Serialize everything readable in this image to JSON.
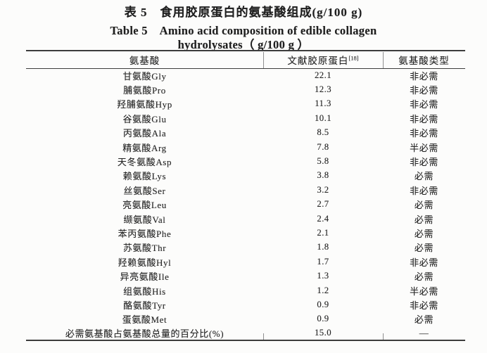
{
  "title": {
    "zh": "表 5　食用胶原蛋白的氨基酸组成(g/100 g)",
    "en_line1": "Table 5　Amino acid composition of edible collagen",
    "en_line2": "hydrolysates（ g/100 g ）"
  },
  "table": {
    "headers": [
      {
        "label": "氨基酸",
        "sup": ""
      },
      {
        "label": "文献胶原蛋白",
        "sup": "[18]"
      },
      {
        "label": "氨基酸类型",
        "sup": ""
      }
    ],
    "rows": [
      {
        "name": "甘氨酸Gly",
        "value": "22.1",
        "type": "非必需"
      },
      {
        "name": "脯氨酸Pro",
        "value": "12.3",
        "type": "非必需"
      },
      {
        "name": "羟脯氨酸Hyp",
        "value": "11.3",
        "type": "非必需"
      },
      {
        "name": "谷氨酸Glu",
        "value": "10.1",
        "type": "非必需"
      },
      {
        "name": "丙氨酸Ala",
        "value": "8.5",
        "type": "非必需"
      },
      {
        "name": "精氨酸Arg",
        "value": "7.8",
        "type": "半必需"
      },
      {
        "name": "天冬氨酸Asp",
        "value": "5.8",
        "type": "非必需"
      },
      {
        "name": "赖氨酸Lys",
        "value": "3.8",
        "type": "必需"
      },
      {
        "name": "丝氨酸Ser",
        "value": "3.2",
        "type": "非必需"
      },
      {
        "name": "亮氨酸Leu",
        "value": "2.7",
        "type": "必需"
      },
      {
        "name": "缬氨酸Val",
        "value": "2.4",
        "type": "必需"
      },
      {
        "name": "苯丙氨酸Phe",
        "value": "2.1",
        "type": "必需"
      },
      {
        "name": "苏氨酸Thr",
        "value": "1.8",
        "type": "必需"
      },
      {
        "name": "羟赖氨酸Hyl",
        "value": "1.7",
        "type": "非必需"
      },
      {
        "name": "异亮氨酸Ile",
        "value": "1.3",
        "type": "必需"
      },
      {
        "name": "组氨酸His",
        "value": "1.2",
        "type": "半必需"
      },
      {
        "name": "酪氨酸Tyr",
        "value": "0.9",
        "type": "非必需"
      },
      {
        "name": "蛋氨酸Met",
        "value": "0.9",
        "type": "必需"
      },
      {
        "name": "必需氨基酸占氨基酸总量的百分比(%)",
        "value": "15.0",
        "type": "—"
      }
    ]
  },
  "colors": {
    "background": "#fcfcfb",
    "text": "#242424",
    "rule": "#3c3c3c",
    "tick": "#8f8f8f"
  }
}
